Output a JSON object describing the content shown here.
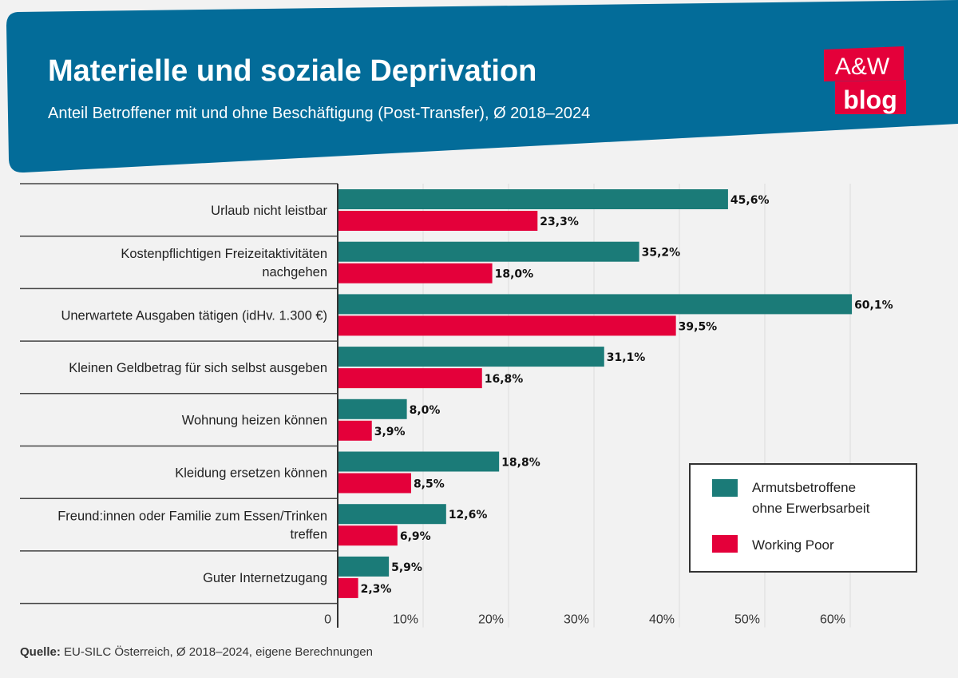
{
  "header": {
    "title": "Materielle und soziale Deprivation",
    "subtitle": "Anteil Betroffener mit und ohne Beschäftigung (Post-Transfer), Ø 2018–2024",
    "logo_top": "A&W",
    "logo_bottom": "blog"
  },
  "colors": {
    "header": "#036c99",
    "series1": "#1b7b78",
    "series2": "#e4003a",
    "logo": "#e4003a",
    "background": "#f2f2f2"
  },
  "chart_data": {
    "type": "bar",
    "orientation": "horizontal",
    "categories": [
      "Urlaub nicht leistbar",
      "Kostenpflichtigen Freizeitaktivitäten nachgehen",
      "Unerwartete Ausgaben tätigen (idHv. 1.300 €)",
      "Kleinen Geldbetrag für sich selbst ausgeben",
      "Wohnung heizen können",
      "Kleidung ersetzen können",
      "Freund:innen oder Familie zum Essen/Trinken treffen",
      "Guter Internetzugang"
    ],
    "series": [
      {
        "name": "Armutsbetroffene ohne Erwerbsarbeit",
        "values": [
          45.6,
          35.2,
          60.1,
          31.1,
          8.0,
          18.8,
          12.6,
          5.9
        ],
        "labels": [
          "45,6%",
          "35,2%",
          "60,1%",
          "31,1%",
          "8,0%",
          "18,8%",
          "12,6%",
          "5,9%"
        ]
      },
      {
        "name": "Working Poor",
        "values": [
          23.3,
          18.0,
          39.5,
          16.8,
          3.9,
          8.5,
          6.9,
          2.3
        ],
        "labels": [
          "23,3%",
          "18,0%",
          "39,5%",
          "16,8%",
          "3,9%",
          "8,5%",
          "6,9%",
          "2,3%"
        ]
      }
    ],
    "xlim": [
      0,
      60
    ],
    "xticks": [
      0,
      10,
      20,
      30,
      40,
      50,
      60
    ],
    "xtick_labels": [
      "0",
      "10%",
      "20%",
      "30%",
      "40%",
      "50%",
      "60%"
    ],
    "grid": true,
    "legend_position": "bottom-right",
    "legend_lines": [
      [
        "Armutsbetroffene",
        "ohne Erwerbsarbeit"
      ],
      [
        "Working Poor"
      ]
    ]
  },
  "source": {
    "label": "Quelle:",
    "text": " EU-SILC Österreich, Ø 2018–2024, eigene Berechnungen"
  }
}
